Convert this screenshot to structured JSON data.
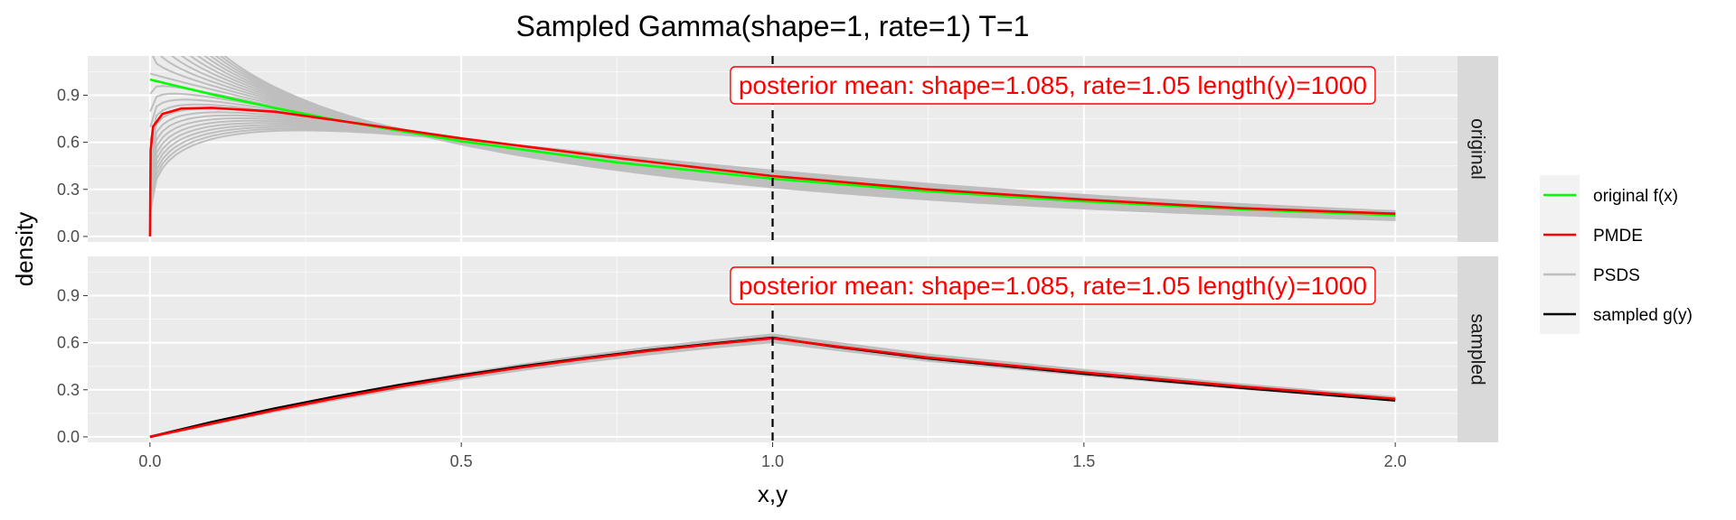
{
  "chart_data": {
    "type": "line",
    "title": "Sampled Gamma(shape=1, rate=1) T=1",
    "xlabel": "x,y",
    "ylabel": "density",
    "xlim": [
      -0.1,
      2.1
    ],
    "ylim": [
      -0.035,
      1.15
    ],
    "x_ticks": [
      "0.0",
      "0.5",
      "1.0",
      "1.5",
      "2.0"
    ],
    "y_ticks": [
      "0.0",
      "0.3",
      "0.6",
      "0.9"
    ],
    "grid": true,
    "vline": {
      "x": 1.0,
      "style": "dashed"
    },
    "legend_position": "right",
    "panels": [
      {
        "strip": "original",
        "annotation": "posterior mean: shape=1.085, rate=1.05 length(y)=1000",
        "series": [
          {
            "name": "original f(x)",
            "color": "#00ff00",
            "x": [
              0.0,
              0.1,
              0.2,
              0.3,
              0.5,
              0.75,
              1.0,
              1.25,
              1.5,
              1.75,
              2.0
            ],
            "y": [
              1.0,
              0.905,
              0.819,
              0.741,
              0.607,
              0.472,
              0.368,
              0.287,
              0.223,
              0.174,
              0.135
            ]
          },
          {
            "name": "PMDE",
            "color": "#ff0000",
            "x": [
              0.0,
              0.001,
              0.005,
              0.02,
              0.05,
              0.1,
              0.2,
              0.3,
              0.5,
              0.75,
              1.0,
              1.25,
              1.5,
              1.75,
              2.0
            ],
            "y": [
              0.0,
              0.55,
              0.7,
              0.78,
              0.815,
              0.82,
              0.795,
              0.74,
              0.625,
              0.5,
              0.385,
              0.3,
              0.235,
              0.18,
              0.145
            ]
          },
          {
            "name": "PSDS",
            "color": "#bebebe",
            "x": [
              0.0,
              0.5,
              1.0,
              1.5,
              2.0
            ],
            "y": [
              0.8,
              0.62,
              0.39,
              0.24,
              0.15
            ]
          }
        ]
      },
      {
        "strip": "sampled",
        "annotation": "posterior mean: shape=1.085, rate=1.05 length(y)=1000",
        "series": [
          {
            "name": "sampled g(y)",
            "color": "#000000",
            "x": [
              0.0,
              0.1,
              0.2,
              0.3,
              0.4,
              0.5,
              0.6,
              0.7,
              0.8,
              0.9,
              1.0,
              1.1,
              1.25,
              1.5,
              1.75,
              2.0
            ],
            "y": [
              0.0,
              0.095,
              0.181,
              0.259,
              0.33,
              0.393,
              0.451,
              0.503,
              0.551,
              0.593,
              0.632,
              0.575,
              0.5,
              0.402,
              0.313,
              0.232
            ]
          },
          {
            "name": "PMDE",
            "color": "#ff0000",
            "x": [
              0.0,
              0.1,
              0.2,
              0.3,
              0.4,
              0.5,
              0.6,
              0.7,
              0.8,
              0.9,
              1.0,
              1.1,
              1.25,
              1.5,
              1.75,
              2.0
            ],
            "y": [
              0.0,
              0.085,
              0.17,
              0.248,
              0.32,
              0.385,
              0.445,
              0.498,
              0.547,
              0.59,
              0.628,
              0.578,
              0.505,
              0.41,
              0.322,
              0.242
            ]
          }
        ]
      }
    ],
    "legend": [
      {
        "label": "original f(x)",
        "color": "#00ff00"
      },
      {
        "label": "PMDE",
        "color": "#ff0000"
      },
      {
        "label": "PSDS",
        "color": "#bebebe"
      },
      {
        "label": "sampled g(y)",
        "color": "#000000"
      }
    ]
  }
}
